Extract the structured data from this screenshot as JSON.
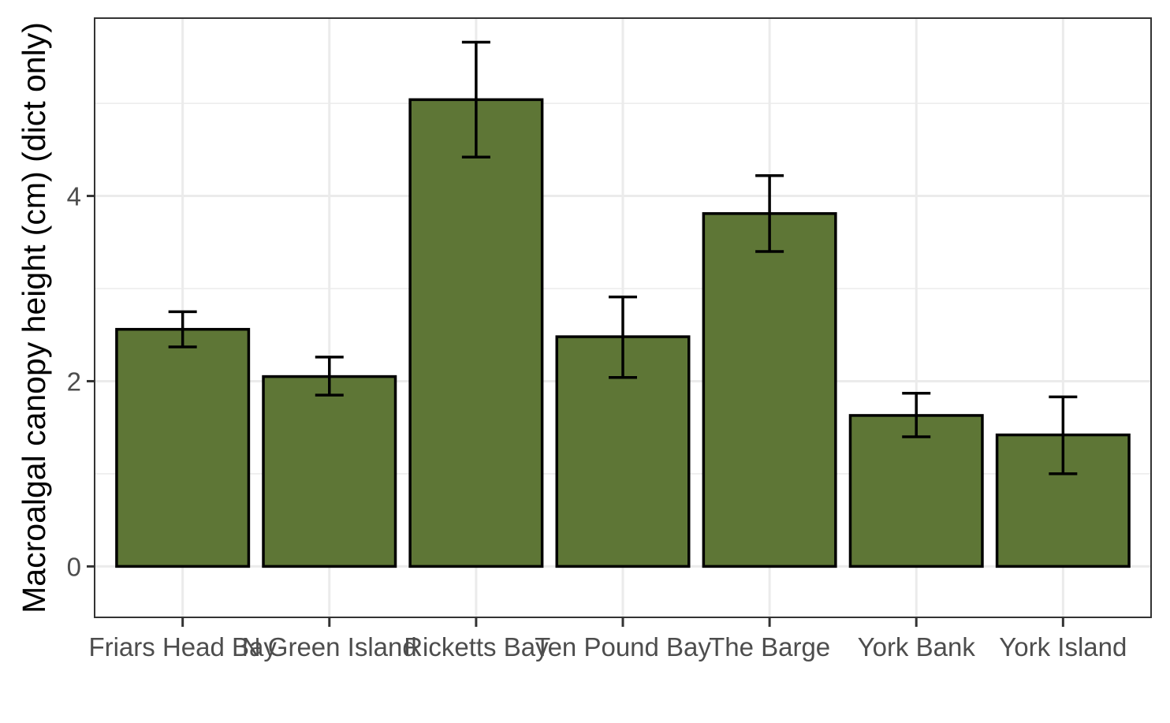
{
  "chart_data": {
    "type": "bar",
    "title": "",
    "xlabel": "",
    "ylabel": "Macroalgal canopy height (cm) (dict only)",
    "categories": [
      "Friars Head Bay",
      "N Green Island",
      "Ricketts Bay",
      "Ten Pound Bay",
      "The Barge",
      "York Bank",
      "York Island"
    ],
    "values": [
      2.56,
      2.05,
      5.04,
      2.48,
      3.81,
      1.63,
      1.42
    ],
    "error_low": [
      2.37,
      1.85,
      4.42,
      2.04,
      3.4,
      1.4,
      1.0
    ],
    "error_high": [
      2.75,
      2.26,
      5.66,
      2.91,
      4.22,
      1.87,
      1.83
    ],
    "ylim": [
      -0.55,
      5.92
    ],
    "yticks": [
      0,
      2,
      4
    ],
    "y_minor_ticks": [
      1,
      3,
      5
    ],
    "grid": true,
    "legend": "none",
    "colors": {
      "bar_fill": "#5e7636",
      "bar_outline": "#000000",
      "grid": "#ebebeb",
      "panel_border": "#333333",
      "tick_text": "#4d4d4d"
    }
  }
}
